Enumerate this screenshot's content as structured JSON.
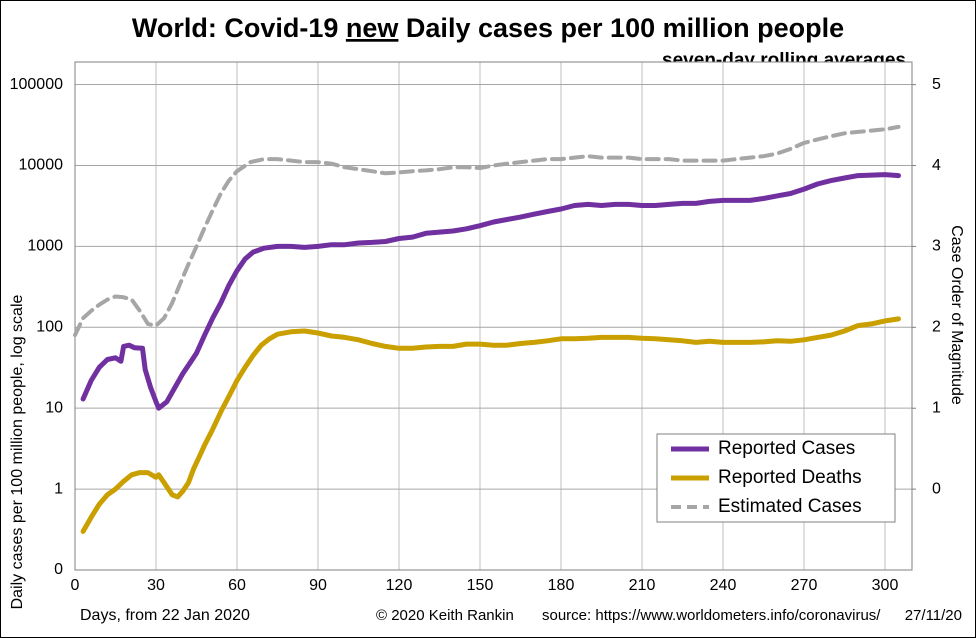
{
  "chart_data": {
    "type": "line",
    "title": {
      "before": "World: Covid-19",
      "underlined": "new",
      "after": "Daily cases per 100 million people"
    },
    "subtitle": "seven-day rolling averages",
    "xlabel": "Days, from 22 Jan 2020",
    "ylabel": "Daily cases per 100 million people, log scale",
    "y2label": "Case Order of Magnitude",
    "footer": {
      "credit": "© 2020  Keith Rankin",
      "source": "source:  https://www.worldometers.info/coronavirus/",
      "date": "27/11/20"
    },
    "ylog": true,
    "grid": true,
    "legend": "lower right",
    "xlim": [
      0,
      310
    ],
    "xticks": [
      0,
      30,
      60,
      90,
      120,
      150,
      180,
      210,
      240,
      270,
      300
    ],
    "ylim": [
      0.1,
      190000
    ],
    "yticks": [
      {
        "value": 0.1,
        "label": "0"
      },
      1,
      10,
      100,
      1000,
      10000,
      100000
    ],
    "y2lim": [
      -1,
      5.28
    ],
    "y2ticks": [
      0,
      1,
      2,
      3,
      4,
      5
    ],
    "series": [
      {
        "name": "Reported Cases",
        "color": "#7030a0",
        "dashed": false,
        "x": [
          3,
          6,
          9,
          12,
          15,
          17,
          18,
          20,
          22,
          25,
          26,
          28,
          30,
          31,
          34,
          37,
          40,
          43,
          45,
          48,
          51,
          54,
          57,
          60,
          63,
          66,
          70,
          75,
          80,
          85,
          90,
          95,
          100,
          105,
          110,
          115,
          120,
          125,
          130,
          135,
          140,
          145,
          150,
          155,
          160,
          165,
          170,
          175,
          180,
          185,
          190,
          195,
          200,
          205,
          210,
          215,
          220,
          225,
          230,
          235,
          240,
          245,
          250,
          255,
          260,
          265,
          270,
          275,
          280,
          285,
          290,
          295,
          300,
          305
        ],
        "values": [
          13,
          22,
          32,
          40,
          42,
          38,
          58,
          60,
          56,
          55,
          30,
          18,
          12,
          10,
          12,
          18,
          27,
          38,
          48,
          80,
          130,
          200,
          330,
          500,
          700,
          850,
          950,
          1000,
          1000,
          970,
          1000,
          1050,
          1050,
          1100,
          1120,
          1150,
          1250,
          1300,
          1450,
          1500,
          1550,
          1650,
          1800,
          2000,
          2150,
          2300,
          2500,
          2700,
          2900,
          3200,
          3300,
          3200,
          3300,
          3300,
          3200,
          3200,
          3300,
          3400,
          3400,
          3600,
          3700,
          3700,
          3700,
          3900,
          4200,
          4500,
          5100,
          5900,
          6500,
          7000,
          7500,
          7600,
          7700,
          7500
        ]
      },
      {
        "name": "Reported Deaths",
        "color": "#c9a000",
        "dashed": false,
        "x": [
          3,
          6,
          9,
          12,
          15,
          18,
          21,
          24,
          27,
          30,
          31,
          33,
          36,
          38,
          40,
          42,
          44,
          46,
          48,
          51,
          54,
          57,
          60,
          63,
          66,
          69,
          72,
          75,
          80,
          85,
          90,
          95,
          100,
          105,
          110,
          115,
          120,
          125,
          130,
          135,
          140,
          145,
          150,
          155,
          160,
          165,
          170,
          175,
          180,
          185,
          190,
          195,
          200,
          205,
          210,
          215,
          220,
          225,
          230,
          235,
          240,
          245,
          250,
          255,
          260,
          265,
          270,
          275,
          280,
          285,
          290,
          295,
          300,
          305
        ],
        "values": [
          0.3,
          0.45,
          0.65,
          0.85,
          1.0,
          1.25,
          1.5,
          1.6,
          1.6,
          1.4,
          1.5,
          1.2,
          0.85,
          0.8,
          0.95,
          1.2,
          1.8,
          2.5,
          3.5,
          5.5,
          9,
          14,
          22,
          32,
          45,
          60,
          72,
          82,
          88,
          90,
          85,
          78,
          75,
          70,
          63,
          58,
          55,
          55,
          57,
          58,
          58,
          62,
          62,
          60,
          60,
          63,
          65,
          68,
          72,
          72,
          73,
          75,
          75,
          75,
          73,
          72,
          70,
          68,
          65,
          67,
          65,
          65,
          65,
          66,
          68,
          67,
          70,
          75,
          80,
          90,
          105,
          110,
          120,
          127
        ]
      },
      {
        "name": "Estimated Cases",
        "color": "#a6a6a6",
        "dashed": true,
        "x": [
          0,
          3,
          6,
          9,
          12,
          15,
          18,
          21,
          24,
          27,
          30,
          33,
          36,
          39,
          42,
          45,
          48,
          51,
          54,
          57,
          60,
          65,
          70,
          75,
          80,
          85,
          90,
          95,
          100,
          105,
          110,
          115,
          120,
          125,
          130,
          135,
          140,
          145,
          150,
          155,
          160,
          165,
          170,
          175,
          180,
          185,
          190,
          195,
          200,
          205,
          210,
          215,
          220,
          225,
          230,
          235,
          240,
          245,
          250,
          255,
          260,
          265,
          270,
          275,
          280,
          285,
          290,
          295,
          300,
          305
        ],
        "values": [
          80,
          130,
          160,
          190,
          220,
          240,
          235,
          220,
          160,
          110,
          105,
          130,
          200,
          350,
          600,
          1000,
          1700,
          2800,
          4500,
          6500,
          8500,
          11000,
          12000,
          12000,
          11500,
          11000,
          11000,
          10500,
          9500,
          9000,
          8500,
          8000,
          8200,
          8500,
          8700,
          9000,
          9500,
          9500,
          9300,
          10000,
          10500,
          11000,
          11500,
          12000,
          12000,
          12500,
          13000,
          12500,
          12500,
          12500,
          12000,
          12000,
          12000,
          11500,
          11500,
          11500,
          11500,
          12000,
          12500,
          13000,
          14000,
          16000,
          19000,
          21000,
          23000,
          25000,
          26000,
          27000,
          28000,
          30000
        ]
      }
    ]
  }
}
